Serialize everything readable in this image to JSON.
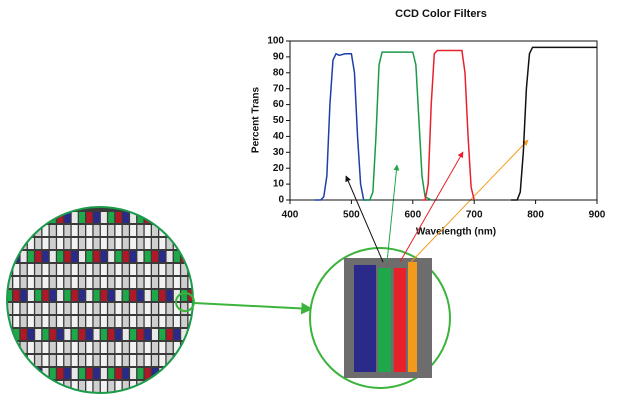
{
  "chart_data": {
    "type": "line",
    "title": "CCD Color Filters",
    "xlabel": "Wavelength (nm)",
    "ylabel": "Percent Trans",
    "xlim": [
      400,
      900
    ],
    "xticks": [
      400,
      500,
      600,
      700,
      800,
      900
    ],
    "ylim": [
      0,
      100
    ],
    "yticks": [
      0,
      10,
      20,
      30,
      40,
      50,
      60,
      70,
      80,
      90,
      100
    ],
    "series": [
      {
        "color": "#1f3fa8",
        "x": [
          440,
          450,
          455,
          460,
          465,
          470,
          475,
          480,
          490,
          500,
          505,
          510,
          515,
          520,
          530
        ],
        "values": [
          0,
          0,
          2,
          15,
          60,
          88,
          92,
          91,
          92,
          92,
          80,
          40,
          10,
          0,
          0
        ]
      },
      {
        "color": "#1a9a4a",
        "x": [
          520,
          530,
          535,
          540,
          545,
          550,
          560,
          580,
          600,
          605,
          610,
          615,
          620,
          630
        ],
        "values": [
          0,
          0,
          5,
          40,
          85,
          93,
          93,
          93,
          93,
          85,
          50,
          15,
          2,
          0
        ]
      },
      {
        "color": "#e8202a",
        "x": [
          615,
          620,
          625,
          630,
          635,
          640,
          660,
          680,
          685,
          690,
          695,
          700
        ],
        "values": [
          0,
          0,
          10,
          60,
          92,
          94,
          94,
          94,
          80,
          40,
          8,
          0
        ]
      },
      {
        "color": "#111111",
        "x": [
          760,
          770,
          775,
          780,
          785,
          790,
          795,
          800,
          850,
          900
        ],
        "values": [
          0,
          0,
          5,
          30,
          70,
          92,
          96,
          96,
          96,
          96
        ]
      }
    ]
  }
}
